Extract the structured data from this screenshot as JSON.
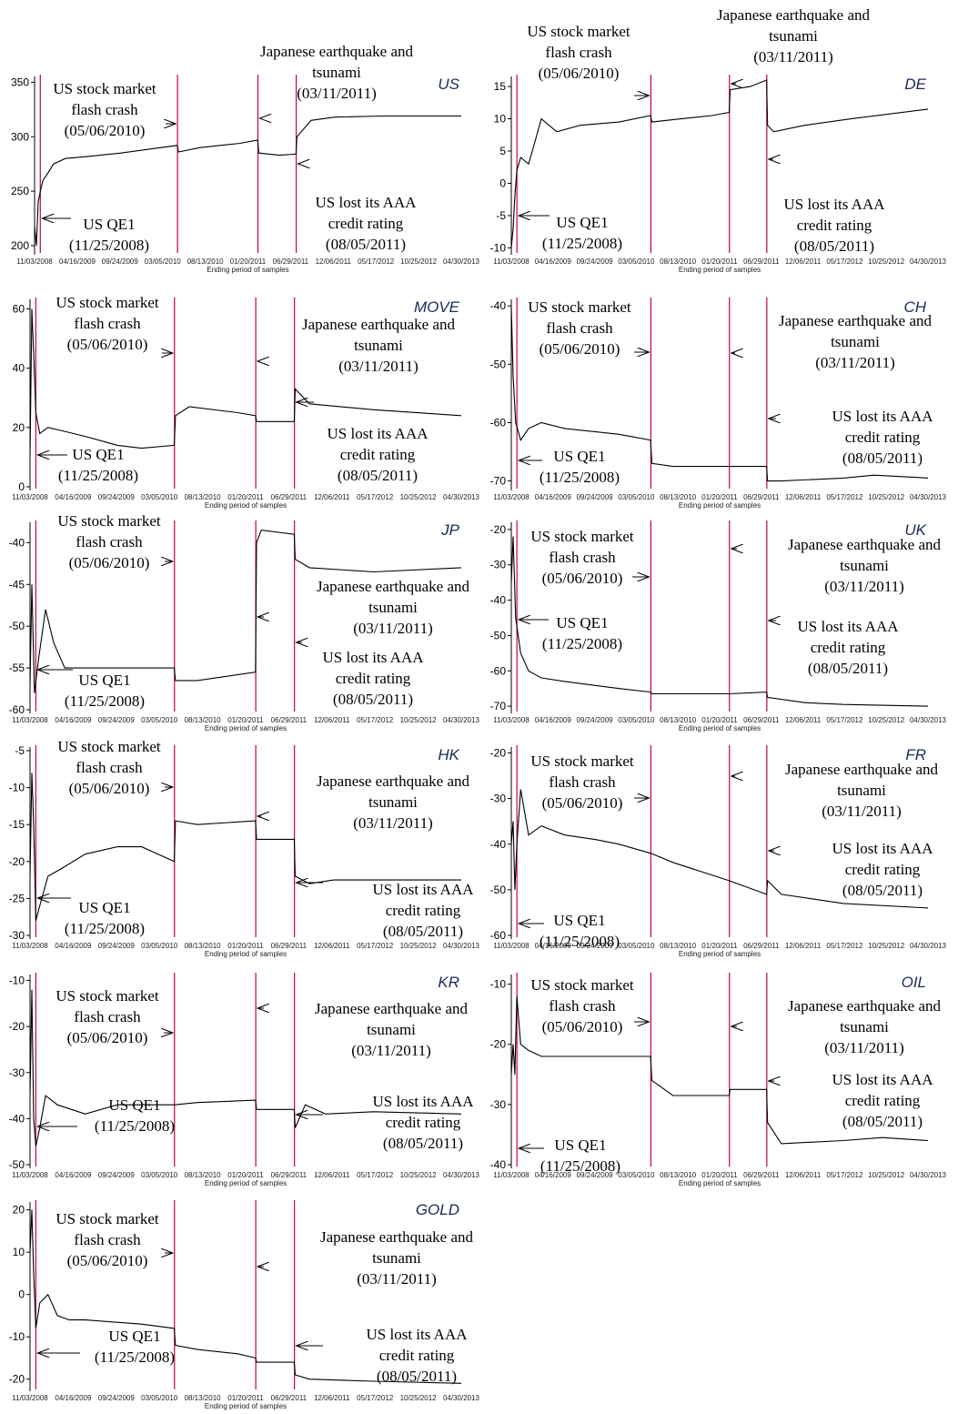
{
  "figure": {
    "x_tick_labels": [
      "11/03/2008",
      "04/16/2009",
      "09/24/2009",
      "03/05/2010",
      "08/13/2010",
      "01/20/2011",
      "06/29/2011",
      "12/06/2011",
      "05/17/2012",
      "10/25/2012",
      "04/30/2013"
    ],
    "xlabel": "Ending period of samples",
    "events": [
      {
        "key": "qe1",
        "label": [
          "US QE1",
          "(11/25/2008)"
        ],
        "date": "2008-11-25"
      },
      {
        "key": "flash",
        "label": [
          "US stock market",
          "flash crash",
          "(05/06/2010)"
        ],
        "date": "2010-05-06"
      },
      {
        "key": "quake",
        "label": [
          "Japanese earthquake and",
          "tsunami",
          "(03/11/2011)"
        ],
        "date": "2011-03-11"
      },
      {
        "key": "aaa",
        "label": [
          "US lost its AAA",
          "credit rating",
          "(08/05/2011)"
        ],
        "date": "2011-08-05"
      }
    ]
  },
  "chart_data": [
    {
      "type": "line",
      "title": "US",
      "xlabel": "Ending period of samples",
      "ylim": [
        195,
        352
      ],
      "yticks": [
        200,
        250,
        300,
        350
      ],
      "series": [
        {
          "x": [
            "2008-11-03",
            "2008-11-10",
            "2008-11-17",
            "2008-11-25",
            "2008-12-05",
            "2008-12-20",
            "2009-01-15",
            "2009-03-01",
            "2009-06-01",
            "2009-10-01",
            "2010-01-01",
            "2010-05-05",
            "2010-05-10",
            "2010-08-01",
            "2011-01-01",
            "2011-03-10",
            "2011-03-14",
            "2011-06-01",
            "2011-08-04",
            "2011-08-08",
            "2011-10-01",
            "2012-01-01",
            "2012-07-01",
            "2013-04-30"
          ],
          "y": [
            218,
            200,
            240,
            250,
            260,
            265,
            275,
            280,
            282,
            285,
            288,
            292,
            286,
            290,
            294,
            297,
            285,
            283,
            284,
            300,
            315,
            318,
            319,
            319
          ]
        }
      ]
    },
    {
      "type": "line",
      "title": "DE",
      "xlabel": "Ending period of samples",
      "ylim": [
        -10.5,
        16
      ],
      "yticks": [
        -10,
        -5,
        0,
        5,
        10,
        15
      ],
      "series": [
        {
          "x": [
            "2008-11-03",
            "2008-11-10",
            "2008-11-17",
            "2008-11-25",
            "2008-12-10",
            "2009-01-10",
            "2009-02-01",
            "2009-03-01",
            "2009-05-01",
            "2009-08-01",
            "2010-01-01",
            "2010-05-05",
            "2010-05-10",
            "2010-09-01",
            "2011-01-01",
            "2011-03-10",
            "2011-03-14",
            "2011-06-01",
            "2011-08-04",
            "2011-08-08",
            "2011-09-01",
            "2012-01-01",
            "2012-07-01",
            "2013-04-30"
          ],
          "y": [
            -10,
            -7,
            -2,
            2,
            4,
            3,
            6,
            10,
            8,
            9,
            9.5,
            10.5,
            9.5,
            10,
            10.5,
            11,
            14.5,
            15,
            16,
            9,
            8,
            9,
            10,
            11.5
          ]
        }
      ]
    },
    {
      "type": "line",
      "title": "MOVE",
      "xlabel": "Ending period of samples",
      "ylim": [
        0,
        62
      ],
      "yticks": [
        0,
        20,
        40,
        60
      ],
      "series": [
        {
          "x": [
            "2008-11-03",
            "2008-11-10",
            "2008-11-17",
            "2008-11-25",
            "2008-12-10",
            "2009-01-10",
            "2009-03-01",
            "2009-06-01",
            "2009-10-01",
            "2010-01-01",
            "2010-05-05",
            "2010-05-10",
            "2010-07-01",
            "2011-01-01",
            "2011-03-10",
            "2011-03-14",
            "2011-08-04",
            "2011-08-08",
            "2011-10-01",
            "2012-06-01",
            "2013-04-30"
          ],
          "y": [
            10,
            60,
            45,
            25,
            18,
            20,
            19,
            17,
            14,
            13,
            14,
            24,
            27,
            25,
            24,
            22,
            22,
            33,
            28,
            26,
            24
          ]
        }
      ]
    },
    {
      "type": "line",
      "title": "CH",
      "xlabel": "Ending period of samples",
      "ylim": [
        -71,
        -39.5
      ],
      "yticks": [
        -70,
        -60,
        -50,
        -40
      ],
      "series": [
        {
          "x": [
            "2008-11-03",
            "2008-11-10",
            "2008-11-20",
            "2008-12-10",
            "2009-01-10",
            "2009-03-01",
            "2009-06-01",
            "2010-01-01",
            "2010-05-05",
            "2010-05-10",
            "2010-08-01",
            "2011-03-10",
            "2011-08-04",
            "2011-08-08",
            "2011-10-01",
            "2012-06-01",
            "2012-10-01",
            "2013-04-30"
          ],
          "y": [
            -40,
            -52,
            -60,
            -63,
            -61,
            -60,
            -61,
            -62,
            -63,
            -67,
            -67.5,
            -67.5,
            -67.5,
            -70,
            -70,
            -69.5,
            -69,
            -69.5
          ]
        }
      ]
    },
    {
      "type": "line",
      "title": "JP",
      "xlabel": "Ending period of samples",
      "ylim": [
        -60,
        -38
      ],
      "yticks": [
        -60,
        -55,
        -50,
        -45,
        -40
      ],
      "series": [
        {
          "x": [
            "2008-11-03",
            "2008-11-10",
            "2008-11-20",
            "2008-12-05",
            "2009-01-01",
            "2009-02-01",
            "2009-03-15",
            "2009-06-01",
            "2010-01-01",
            "2010-05-05",
            "2010-05-10",
            "2010-08-01",
            "2011-03-10",
            "2011-03-14",
            "2011-04-01",
            "2011-08-04",
            "2011-08-08",
            "2011-10-01",
            "2012-06-01",
            "2013-04-30"
          ],
          "y": [
            -57,
            -45,
            -58,
            -54,
            -48,
            -52,
            -55,
            -55,
            -55,
            -55,
            -56.5,
            -56.5,
            -55.5,
            -40,
            -38.5,
            -39,
            -42,
            -43,
            -43.5,
            -43
          ]
        }
      ]
    },
    {
      "type": "line",
      "title": "UK",
      "xlabel": "Ending period of samples",
      "ylim": [
        -71,
        -19
      ],
      "yticks": [
        -70,
        -60,
        -50,
        -40,
        -30,
        -20
      ],
      "series": [
        {
          "x": [
            "2008-11-03",
            "2008-11-10",
            "2008-11-20",
            "2008-12-10",
            "2009-01-10",
            "2009-03-01",
            "2009-06-01",
            "2010-01-01",
            "2010-05-05",
            "2010-05-10",
            "2011-03-10",
            "2011-08-04",
            "2011-08-08",
            "2012-01-01",
            "2012-06-01",
            "2013-04-30"
          ],
          "y": [
            -35,
            -22,
            -45,
            -55,
            -60,
            -62,
            -63,
            -65,
            -66,
            -66.5,
            -66.5,
            -66,
            -67.5,
            -69,
            -69.5,
            -70
          ]
        }
      ]
    },
    {
      "type": "line",
      "title": "HK",
      "xlabel": "Ending period of samples",
      "ylim": [
        -30,
        -5
      ],
      "yticks": [
        -30,
        -25,
        -20,
        -15,
        -10,
        -5
      ],
      "series": [
        {
          "x": [
            "2008-11-03",
            "2008-11-10",
            "2008-11-17",
            "2008-11-25",
            "2008-12-10",
            "2009-01-10",
            "2009-03-01",
            "2009-06-01",
            "2009-10-01",
            "2010-01-01",
            "2010-05-05",
            "2010-05-10",
            "2010-08-01",
            "2011-03-10",
            "2011-03-14",
            "2011-08-04",
            "2011-08-08",
            "2011-10-01",
            "2012-01-01",
            "2012-06-01",
            "2013-04-30"
          ],
          "y": [
            -22,
            -8,
            -15,
            -28,
            -26,
            -22,
            -21,
            -19,
            -18,
            -18,
            -20,
            -14.5,
            -15,
            -14.5,
            -17,
            -17,
            -22,
            -23,
            -22.5,
            -22.5,
            -22.5
          ]
        }
      ]
    },
    {
      "type": "line",
      "title": "FR",
      "xlabel": "Ending period of samples",
      "ylim": [
        -60,
        -19.5
      ],
      "yticks": [
        -60,
        -50,
        -40,
        -30,
        -20
      ],
      "series": [
        {
          "x": [
            "2008-11-03",
            "2008-11-10",
            "2008-11-17",
            "2008-11-25",
            "2008-12-10",
            "2009-01-10",
            "2009-03-01",
            "2009-06-01",
            "2009-10-01",
            "2010-01-01",
            "2010-05-06",
            "2010-08-01",
            "2011-03-10",
            "2011-08-04",
            "2011-08-08",
            "2011-10-01",
            "2012-06-01",
            "2013-04-30"
          ],
          "y": [
            -40,
            -35,
            -50,
            -40,
            -28,
            -38,
            -36,
            -38,
            -39,
            -40,
            -42,
            -44,
            -48,
            -51,
            -48,
            -51,
            -53,
            -54
          ]
        }
      ]
    },
    {
      "type": "line",
      "title": "KR",
      "xlabel": "Ending period of samples",
      "ylim": [
        -50,
        -9.5
      ],
      "yticks": [
        -50,
        -40,
        -30,
        -20,
        -10
      ],
      "series": [
        {
          "x": [
            "2008-11-03",
            "2008-11-10",
            "2008-11-17",
            "2008-11-25",
            "2008-12-10",
            "2009-01-01",
            "2009-02-15",
            "2009-06-01",
            "2009-10-01",
            "2010-01-01",
            "2010-05-06",
            "2010-08-01",
            "2011-03-10",
            "2011-03-14",
            "2011-08-04",
            "2011-08-08",
            "2011-09-15",
            "2011-12-01",
            "2012-06-01",
            "2013-04-30"
          ],
          "y": [
            -35,
            -12,
            -40,
            -46,
            -42,
            -35,
            -37,
            -39,
            -37,
            -37,
            -37,
            -36.5,
            -36,
            -38,
            -38,
            -42,
            -37,
            -39,
            -38.5,
            -39
          ]
        }
      ]
    },
    {
      "type": "line",
      "title": "OIL",
      "xlabel": "Ending period of samples",
      "ylim": [
        -40,
        -9
      ],
      "yticks": [
        -40,
        -30,
        -20,
        -10
      ],
      "series": [
        {
          "x": [
            "2008-11-03",
            "2008-11-10",
            "2008-11-17",
            "2008-11-25",
            "2008-12-10",
            "2009-01-10",
            "2009-03-01",
            "2009-06-01",
            "2010-01-01",
            "2010-05-05",
            "2010-05-10",
            "2010-08-01",
            "2011-03-10",
            "2011-03-14",
            "2011-08-04",
            "2011-08-08",
            "2011-10-01",
            "2012-06-01",
            "2012-11-01",
            "2013-04-30"
          ],
          "y": [
            -25,
            -20,
            -25,
            -12,
            -20,
            -21,
            -22,
            -22,
            -22,
            -22,
            -26,
            -28.5,
            -28.5,
            -27.5,
            -27.5,
            -33,
            -36.5,
            -36,
            -35.5,
            -36
          ]
        }
      ]
    },
    {
      "type": "line",
      "title": "GOLD",
      "xlabel": "Ending period of samples",
      "ylim": [
        -22,
        21
      ],
      "yticks": [
        -20,
        -10,
        0,
        10,
        20
      ],
      "series": [
        {
          "x": [
            "2008-11-03",
            "2008-11-10",
            "2008-11-17",
            "2008-11-25",
            "2008-12-10",
            "2009-01-10",
            "2009-02-15",
            "2009-04-01",
            "2009-06-01",
            "2010-01-01",
            "2010-05-05",
            "2010-05-10",
            "2010-08-01",
            "2011-01-01",
            "2011-03-10",
            "2011-03-14",
            "2011-08-04",
            "2011-08-08",
            "2011-10-01",
            "2012-06-01",
            "2013-04-30"
          ],
          "y": [
            10,
            20,
            5,
            -8,
            -2,
            0,
            -5,
            -6,
            -6,
            -7,
            -8,
            -12,
            -13,
            -14,
            -15,
            -16,
            -16,
            -19,
            -20,
            -20.5,
            -21
          ]
        }
      ]
    }
  ]
}
